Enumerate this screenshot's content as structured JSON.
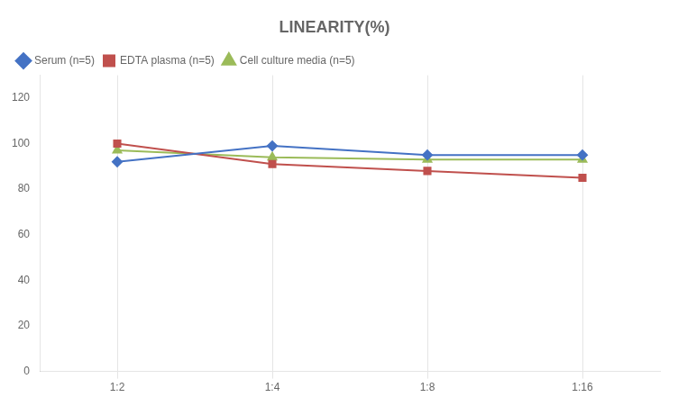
{
  "chart_data": {
    "type": "line",
    "title": "LINEARITY(%)",
    "categories": [
      "1:2",
      "1:4",
      "1:8",
      "1:16"
    ],
    "series": [
      {
        "name": "Serum (n=5)",
        "color": "#4472C4",
        "marker": "diamond",
        "line_style": "solid",
        "values": [
          92,
          99,
          95,
          95
        ]
      },
      {
        "name": "EDTA plasma (n=5)",
        "color": "#C0504D",
        "marker": "square",
        "line_style": "solid",
        "values": [
          100,
          91,
          88,
          85
        ]
      },
      {
        "name": "Cell culture media (n=5)",
        "color": "#9BBB59",
        "marker": "triangle",
        "line_style": "solid",
        "values": [
          97,
          94,
          93,
          93
        ]
      }
    ],
    "ylim": [
      0,
      130
    ],
    "yticks": [
      0,
      20,
      40,
      60,
      80,
      100,
      120
    ],
    "grid": "x",
    "legend": "upper left"
  }
}
